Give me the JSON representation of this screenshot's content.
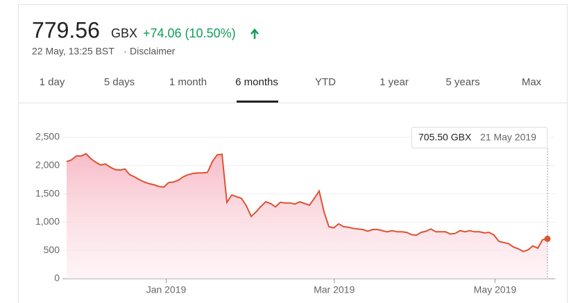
{
  "header": {
    "price": "779.56",
    "currency": "GBX",
    "change": "+74.06 (10.50%)",
    "timestamp": "22 May, 13:25 BST",
    "separator": "·",
    "disclaimer": "Disclaimer"
  },
  "tabs": {
    "items": [
      "1 day",
      "5 days",
      "1 month",
      "6 months",
      "YTD",
      "1 year",
      "5 years",
      "Max"
    ],
    "selected": 3
  },
  "tooltip": {
    "price": "705.50 GBX",
    "date": "21 May 2019"
  },
  "chart_data": {
    "type": "area",
    "color": "#dd5230",
    "values": [
      2070,
      2100,
      2170,
      2170,
      2210,
      2120,
      2060,
      2010,
      2030,
      1970,
      1930,
      1920,
      1940,
      1840,
      1800,
      1750,
      1710,
      1680,
      1660,
      1630,
      1620,
      1700,
      1710,
      1740,
      1800,
      1840,
      1860,
      1870,
      1870,
      1880,
      2070,
      2190,
      2200,
      1350,
      1480,
      1450,
      1420,
      1290,
      1100,
      1180,
      1280,
      1360,
      1330,
      1270,
      1350,
      1340,
      1340,
      1320,
      1360,
      1330,
      1300,
      1420,
      1550,
      1180,
      920,
      900,
      970,
      920,
      910,
      890,
      880,
      870,
      840,
      870,
      870,
      850,
      830,
      850,
      830,
      830,
      820,
      780,
      770,
      820,
      840,
      880,
      830,
      830,
      830,
      790,
      800,
      850,
      830,
      850,
      830,
      830,
      810,
      820,
      770,
      660,
      640,
      620,
      560,
      530,
      480,
      510,
      580,
      540,
      690,
      705.5
    ],
    "xlim": [
      0,
      99
    ],
    "xticks": [
      {
        "value": 20.5,
        "label": "Jan 2019"
      },
      {
        "value": 55.1,
        "label": "Mar 2019"
      },
      {
        "value": 88.2,
        "label": "May 2019"
      }
    ],
    "ylim": [
      0,
      2500
    ],
    "yticks": [
      0,
      {
        "value": 500,
        "label": "500"
      },
      {
        "value": 1000,
        "label": "1,000"
      },
      {
        "value": 1500,
        "label": "1,500"
      },
      {
        "value": 2000,
        "label": "2,000"
      },
      {
        "value": 2500,
        "label": "2,500"
      }
    ],
    "grid": true
  }
}
